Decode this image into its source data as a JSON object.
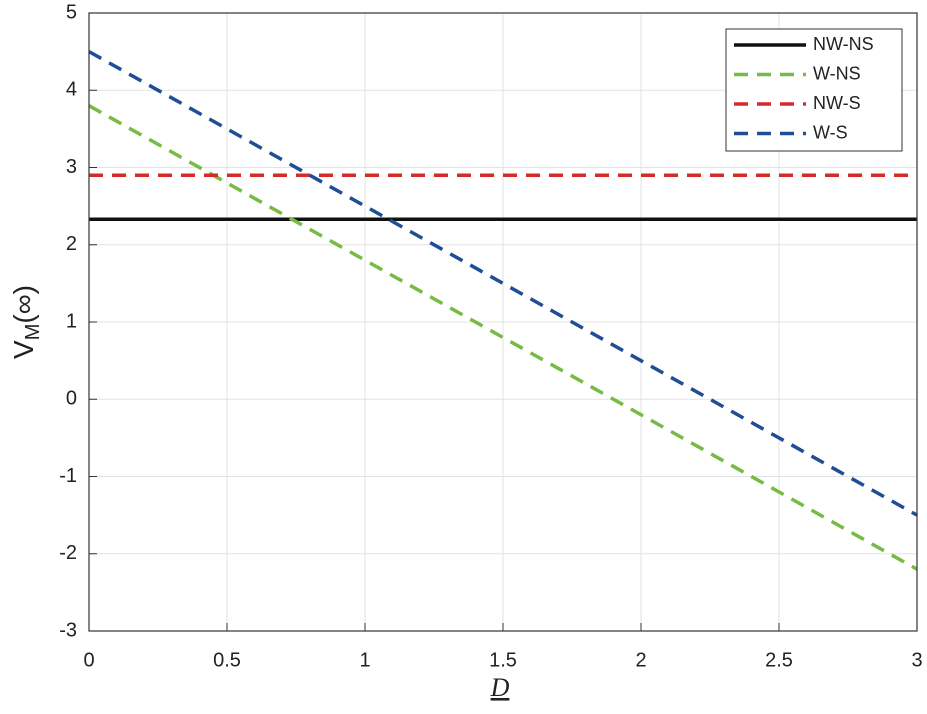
{
  "chart_data": {
    "type": "line",
    "xlabel": "D",
    "ylabel": [
      "V",
      "M",
      "(∞)"
    ],
    "x": [
      0,
      3
    ],
    "series": [
      {
        "name": "NW-NS",
        "color": "#111111",
        "style": "solid",
        "values": [
          2.33,
          2.33
        ]
      },
      {
        "name": "W-NS",
        "color": "#77bb44",
        "style": "dashed",
        "values": [
          3.8,
          -2.2
        ]
      },
      {
        "name": "NW-S",
        "color": "#d62a2a",
        "style": "dashed",
        "values": [
          2.9,
          2.9
        ]
      },
      {
        "name": "W-S",
        "color": "#1f4e96",
        "style": "dashed",
        "values": [
          4.5,
          -1.5
        ]
      }
    ],
    "xlim": [
      0,
      3
    ],
    "xticks": [
      0,
      0.5,
      1,
      1.5,
      2,
      2.5,
      3
    ],
    "ylim": [
      -3,
      5
    ],
    "yticks": [
      -3,
      -2,
      -1,
      0,
      1,
      2,
      3,
      4,
      5
    ],
    "grid": true,
    "legend": "top-right"
  }
}
